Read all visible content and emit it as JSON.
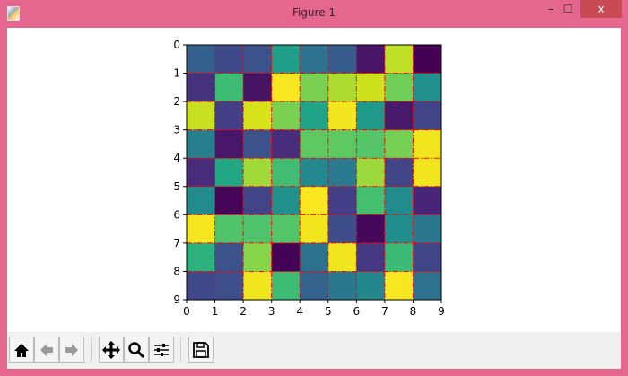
{
  "window": {
    "title": "Figure 1",
    "minimize": "–",
    "maximize": "☐",
    "close": "x"
  },
  "toolbar": {
    "buttons": [
      {
        "name": "home",
        "icon": "home-icon"
      },
      {
        "name": "back",
        "icon": "arrow-left-icon"
      },
      {
        "name": "forward",
        "icon": "arrow-right-icon"
      },
      {
        "name": "pan",
        "icon": "move-icon"
      },
      {
        "name": "zoom",
        "icon": "magnifier-icon"
      },
      {
        "name": "configure",
        "icon": "sliders-icon"
      },
      {
        "name": "save",
        "icon": "floppy-icon"
      }
    ]
  },
  "chart_data": {
    "type": "heatmap",
    "colormap": "viridis",
    "xticks": [
      "0",
      "1",
      "2",
      "3",
      "4",
      "5",
      "6",
      "7",
      "8",
      "9"
    ],
    "yticks": [
      "0",
      "1",
      "2",
      "3",
      "4",
      "5",
      "6",
      "7",
      "8",
      "9"
    ],
    "xlim": [
      0,
      9
    ],
    "ylim": [
      9,
      0
    ],
    "grid": true,
    "grid_color": "#ff0000",
    "grid_style": "dash-dot",
    "cell_colors": [
      [
        "#35608d",
        "#3e4a89",
        "#3b528b",
        "#1f9e89",
        "#2c728e",
        "#365c8d",
        "#481467",
        "#bddf26",
        "#440154"
      ],
      [
        "#46337e",
        "#3dbc74",
        "#471365",
        "#f8e621",
        "#7ad151",
        "#addc30",
        "#cde11d",
        "#6ece58",
        "#21908d"
      ],
      [
        "#c8e020",
        "#433e85",
        "#d8e219",
        "#7ad151",
        "#20a386",
        "#f4e61e",
        "#1f9a8a",
        "#481a6c",
        "#414487"
      ],
      [
        "#277f8e",
        "#481769",
        "#3b528b",
        "#472d7b",
        "#5ec962",
        "#5ec962",
        "#54c568",
        "#75d054",
        "#f1e51d"
      ],
      [
        "#472c7a",
        "#22a785",
        "#a0da39",
        "#40bd72",
        "#23898e",
        "#297a8e",
        "#9bd93c",
        "#404688",
        "#f4e61e"
      ],
      [
        "#228c8d",
        "#450559",
        "#414487",
        "#21918c",
        "#fae722",
        "#433e85",
        "#44bf70",
        "#228b8d",
        "#482576"
      ],
      [
        "#f6e620",
        "#50c46a",
        "#4ec36b",
        "#52c569",
        "#f2e51d",
        "#3e4c8a",
        "#46085c",
        "#228d8d",
        "#2a778e"
      ],
      [
        "#2db27d",
        "#3b528b",
        "#86d549",
        "#440256",
        "#2c718e",
        "#f1e51d",
        "#453882",
        "#3bbb75",
        "#404588"
      ],
      [
        "#3f4889",
        "#3d4e8a",
        "#f1e51d",
        "#3dbc74",
        "#33638d",
        "#2a788e",
        "#24878e",
        "#f8e621",
        "#2d718e"
      ]
    ]
  }
}
